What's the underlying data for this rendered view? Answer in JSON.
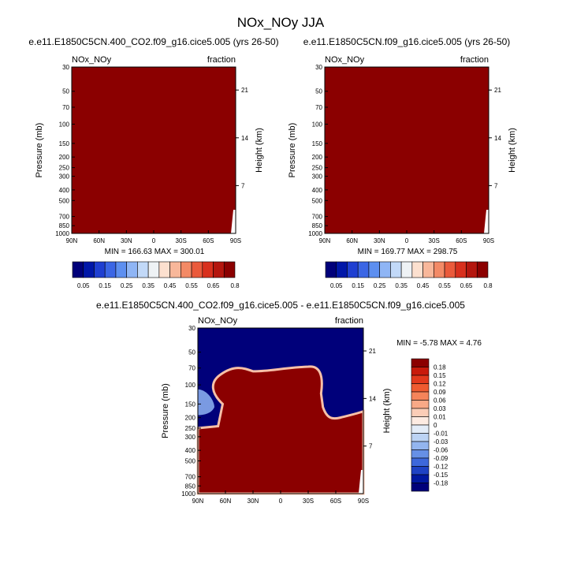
{
  "page_title": "NOx_NOy JJA",
  "colors": {
    "plot_fill": "#8b0000",
    "low_fill": "#00007a",
    "background": "#ffffff"
  },
  "chart_data": [
    {
      "type": "heatmap",
      "title": "e.e11.E1850C5CN.400_CO2.f09_g16.cice5.005 (yrs 26-50)",
      "left_label": "NOx_NOy",
      "right_label": "fraction",
      "ylabel": "Pressure (mb)",
      "ylabel_right": "Height (km)",
      "x_ticks": [
        "90N",
        "60N",
        "30N",
        "0",
        "30S",
        "60S",
        "90S"
      ],
      "y_ticks": [
        "30",
        "50",
        "70",
        "100",
        "150",
        "200",
        "250",
        "300",
        "400",
        "500",
        "700",
        "850",
        "1000"
      ],
      "y2_ticks": [
        "21",
        "14",
        "7"
      ],
      "stats": "MIN = 166.63   MAX = 300.01",
      "colorbar_labels": [
        "0.05",
        "0.15",
        "0.25",
        "0.35",
        "0.45",
        "0.55",
        "0.65",
        "0.8"
      ],
      "colorbar_colors": [
        "#00007a",
        "#0017a8",
        "#1f3fd1",
        "#3b66e5",
        "#5d8ff0",
        "#8fb5f5",
        "#c2d9f8",
        "#eef2f5",
        "#fce0cf",
        "#f8b79a",
        "#f38a66",
        "#ea5a3b",
        "#d8301d",
        "#b4160e",
        "#8b0000"
      ]
    },
    {
      "type": "heatmap",
      "title": "e.e11.E1850C5CN.f09_g16.cice5.005 (yrs 26-50)",
      "left_label": "NOx_NOy",
      "right_label": "fraction",
      "ylabel": "Pressure (mb)",
      "ylabel_right": "Height (km)",
      "x_ticks": [
        "90N",
        "60N",
        "30N",
        "0",
        "30S",
        "60S",
        "90S"
      ],
      "y_ticks": [
        "30",
        "50",
        "70",
        "100",
        "150",
        "200",
        "250",
        "300",
        "400",
        "500",
        "700",
        "850",
        "1000"
      ],
      "y2_ticks": [
        "21",
        "14",
        "7"
      ],
      "stats": "MIN = 169.77   MAX = 298.75",
      "colorbar_labels": [
        "0.05",
        "0.15",
        "0.25",
        "0.35",
        "0.45",
        "0.55",
        "0.65",
        "0.8"
      ],
      "colorbar_colors": [
        "#00007a",
        "#0017a8",
        "#1f3fd1",
        "#3b66e5",
        "#5d8ff0",
        "#8fb5f5",
        "#c2d9f8",
        "#eef2f5",
        "#fce0cf",
        "#f8b79a",
        "#f38a66",
        "#ea5a3b",
        "#d8301d",
        "#b4160e",
        "#8b0000"
      ]
    },
    {
      "type": "heatmap",
      "title": "e.e11.E1850C5CN.400_CO2.f09_g16.cice5.005 - e.e11.E1850C5CN.f09_g16.cice5.005",
      "left_label": "NOx_NOy",
      "right_label": "fraction",
      "ylabel": "Pressure (mb)",
      "ylabel_right": "Height (km)",
      "x_ticks": [
        "90N",
        "60N",
        "30N",
        "0",
        "30S",
        "60S",
        "90S"
      ],
      "y_ticks": [
        "30",
        "50",
        "70",
        "100",
        "150",
        "200",
        "250",
        "300",
        "400",
        "500",
        "700",
        "850",
        "1000"
      ],
      "y2_ticks": [
        "21",
        "14",
        "7"
      ],
      "stats": "MIN = -5.78  MAX =  4.76",
      "colorbar_labels": [
        "0.18",
        "0.15",
        "0.12",
        "0.09",
        "0.06",
        "0.03",
        "0.01",
        "0",
        "-0.01",
        "-0.03",
        "-0.06",
        "-0.09",
        "-0.12",
        "-0.15",
        "-0.18"
      ],
      "colorbar_colors": [
        "#8b0000",
        "#c81a0b",
        "#e2391c",
        "#ef5b30",
        "#f5845a",
        "#f8a987",
        "#fbcdb7",
        "#fdebe2",
        "#e3ecf8",
        "#bcd3f4",
        "#93b5ef",
        "#6690e6",
        "#3d68db",
        "#1e42c4",
        "#0018a0",
        "#00007a"
      ]
    }
  ]
}
